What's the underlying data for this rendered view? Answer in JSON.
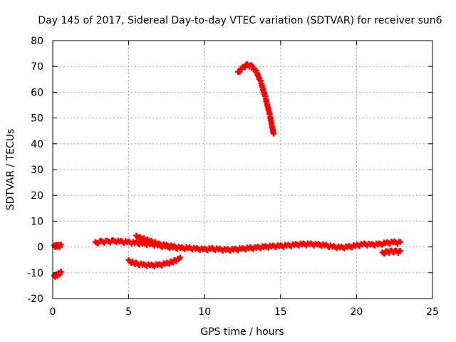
{
  "chart_data": {
    "type": "scatter",
    "title": "Day 145 of 2017, Sidereal Day-to-day VTEC variation (SDTVAR) for receiver sun6",
    "xlabel": "GPS time / hours",
    "ylabel": "SDTVAR / TECUs",
    "xlim": [
      0,
      25
    ],
    "ylim": [
      -20,
      80
    ],
    "xticks": [
      0,
      5,
      10,
      15,
      20,
      25
    ],
    "yticks": [
      -20,
      -10,
      0,
      10,
      20,
      30,
      40,
      50,
      60,
      70,
      80
    ],
    "grid": true,
    "marker": "plus",
    "color": "#ff0000",
    "series": [
      {
        "name": "seg1",
        "x": [
          0.1,
          0.25,
          0.4,
          0.55
        ],
        "y": [
          0.2,
          0.4,
          0.3,
          0.5
        ]
      },
      {
        "name": "seg2",
        "x": [
          0.1,
          0.25,
          0.4,
          0.55
        ],
        "y": [
          -11.5,
          -11.0,
          -10.5,
          -10.0
        ]
      },
      {
        "name": "seg3",
        "x": [
          2.8,
          3.2,
          3.6,
          4.0,
          4.5,
          5.0,
          5.5,
          6.0,
          6.5,
          7.0,
          7.5,
          8.0,
          8.5,
          9.0,
          9.5,
          10.0,
          10.5,
          11.0,
          11.5,
          12.0,
          12.5,
          13.0,
          13.5,
          14.0,
          14.5,
          15.0,
          15.5,
          16.0,
          16.5,
          17.0,
          17.5,
          18.0,
          18.5,
          19.0,
          19.5,
          20.0,
          20.5,
          21.0,
          21.5,
          22.0,
          22.5,
          22.9
        ],
        "y": [
          1.5,
          2.0,
          2.0,
          2.2,
          2.0,
          1.8,
          1.5,
          1.2,
          1.0,
          0.5,
          0.0,
          -0.3,
          -0.5,
          -0.5,
          -0.8,
          -1.0,
          -0.8,
          -1.0,
          -1.2,
          -1.0,
          -0.8,
          -0.5,
          -0.3,
          0.0,
          0.2,
          0.3,
          0.5,
          0.8,
          1.0,
          1.0,
          0.8,
          0.5,
          0.0,
          -0.3,
          0.0,
          0.5,
          1.0,
          0.8,
          1.0,
          1.5,
          1.8,
          1.5
        ]
      },
      {
        "name": "seg4",
        "x": [
          5.5,
          6.0,
          6.5,
          7.0,
          7.5,
          8.0,
          8.5
        ],
        "y": [
          4.0,
          3.0,
          2.0,
          1.0,
          0.5,
          0.0,
          -0.5
        ]
      },
      {
        "name": "seg5",
        "x": [
          5.0,
          5.5,
          6.0,
          6.5,
          7.0,
          7.5,
          8.0,
          8.4
        ],
        "y": [
          -5.5,
          -6.5,
          -7.0,
          -7.2,
          -7.0,
          -6.5,
          -5.5,
          -4.5
        ]
      },
      {
        "name": "seg6",
        "x": [
          12.2,
          12.5,
          12.8,
          13.1,
          13.4,
          13.7,
          14.0,
          14.3,
          14.55
        ],
        "y": [
          67.5,
          69.5,
          70.5,
          70.0,
          68.0,
          64.0,
          58.0,
          51.0,
          43.5
        ]
      },
      {
        "name": "seg7",
        "x": [
          21.7,
          22.0,
          22.3,
          22.6,
          22.9
        ],
        "y": [
          -2.5,
          -2.0,
          -1.8,
          -1.8,
          -2.0
        ]
      }
    ]
  }
}
